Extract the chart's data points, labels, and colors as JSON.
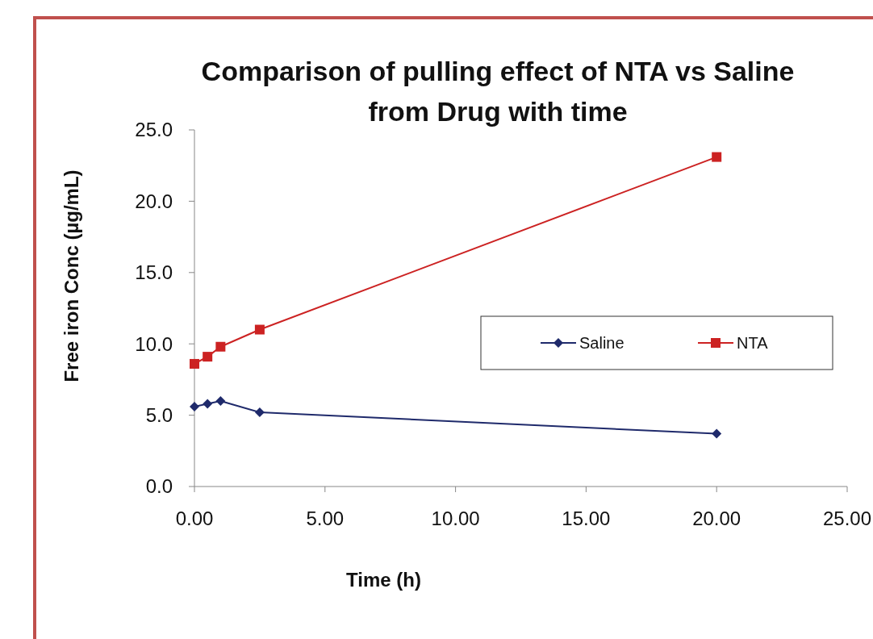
{
  "chart_data": {
    "type": "line",
    "title": "Comparison of pulling effect of NTA vs Saline from Drug with time",
    "xlabel": "Time (h)",
    "ylabel": "Free iron  Conc (µg/mL)",
    "x": [
      0,
      0.5,
      1,
      2.5,
      20
    ],
    "series": [
      {
        "name": "Saline",
        "color": "#1f2a6b",
        "values": [
          5.6,
          5.8,
          6.0,
          5.2,
          3.7
        ],
        "marker": "diamond"
      },
      {
        "name": "NTA",
        "color": "#cc2222",
        "values": [
          8.6,
          9.1,
          9.8,
          11.0,
          23.1
        ],
        "marker": "square"
      }
    ],
    "xlim": [
      0,
      25
    ],
    "xticks": [
      {
        "value": 0,
        "label": "0.00"
      },
      {
        "value": 5,
        "label": "5.00"
      },
      {
        "value": 10,
        "label": "10.00"
      },
      {
        "value": 15,
        "label": "15.00"
      },
      {
        "value": 20,
        "label": "20.00"
      },
      {
        "value": 25,
        "label": "25.00"
      }
    ],
    "ylim": [
      0,
      25
    ],
    "yticks": [
      {
        "value": 0,
        "label": "0.0"
      },
      {
        "value": 5,
        "label": "5.0"
      },
      {
        "value": 10,
        "label": "10.0"
      },
      {
        "value": 15,
        "label": "15.0"
      },
      {
        "value": 20,
        "label": "20.0"
      },
      {
        "value": 25,
        "label": "25.0"
      }
    ],
    "grid": false,
    "legend": "right",
    "line_style": "solid"
  }
}
